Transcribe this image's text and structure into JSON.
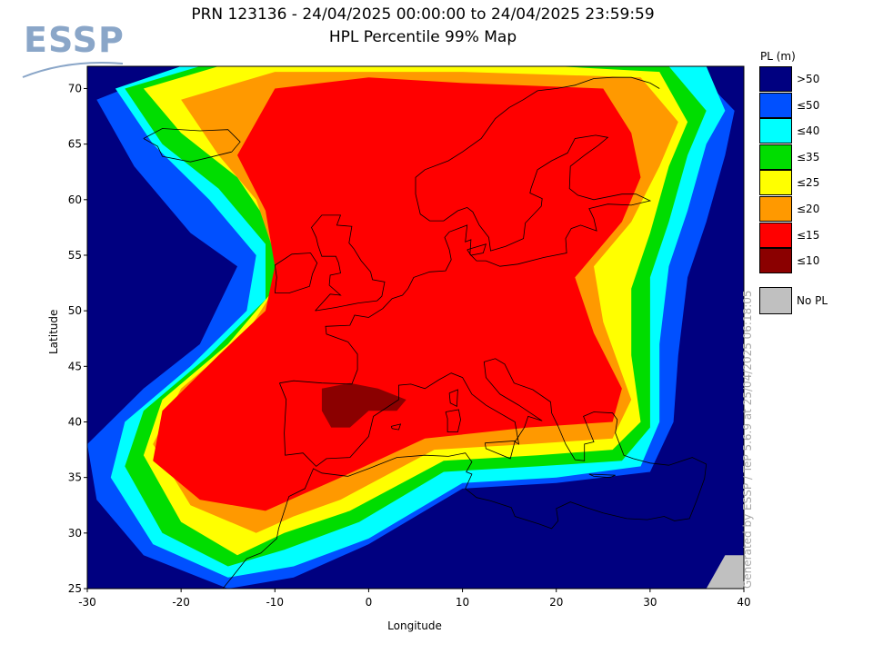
{
  "logo": {
    "text": "ESSP",
    "color": "#8aa6c8"
  },
  "title": {
    "line1": "PRN 123136 - 24/04/2025 00:00:00 to 24/04/2025 23:59:59",
    "line2": "HPL Percentile 99% Map"
  },
  "axes": {
    "xlabel": "Longitude",
    "ylabel": "Latitude",
    "xlim": [
      -30,
      40
    ],
    "ylim": [
      25,
      72
    ],
    "xticks": [
      -30,
      -20,
      -10,
      0,
      10,
      20,
      30,
      40
    ],
    "yticks": [
      25,
      30,
      35,
      40,
      45,
      50,
      55,
      60,
      65,
      70
    ]
  },
  "legend": {
    "title": "PL (m)",
    "items": [
      {
        "label": ">50",
        "color": "#000080"
      },
      {
        "label": "≤50",
        "color": "#0050ff"
      },
      {
        "label": "≤40",
        "color": "#00ffff"
      },
      {
        "label": "≤35",
        "color": "#00dd00"
      },
      {
        "label": "≤25",
        "color": "#ffff00"
      },
      {
        "label": "≤20",
        "color": "#ff9900"
      },
      {
        "label": "≤15",
        "color": "#ff0000"
      },
      {
        "label": "≤10",
        "color": "#8b0000"
      }
    ],
    "no_pl": {
      "label": "No PL",
      "color": "#c0c0c0"
    }
  },
  "watermark": "Generated by ESSP / TeP 5.6.9 at 25/04/2025 06:18:05",
  "map_regions": {
    "background_level": ">50",
    "bands": [
      {
        "level": "≤50",
        "color": "#0050ff",
        "points": [
          [
            -29,
            69
          ],
          [
            -25,
            63
          ],
          [
            -19,
            57
          ],
          [
            -14,
            54
          ],
          [
            -18,
            47
          ],
          [
            -24,
            43
          ],
          [
            -30,
            38
          ],
          [
            -29,
            33
          ],
          [
            -24,
            28
          ],
          [
            -15,
            25
          ],
          [
            -8,
            26
          ],
          [
            0,
            29
          ],
          [
            10,
            34
          ],
          [
            20,
            34.5
          ],
          [
            30,
            35.5
          ],
          [
            32.5,
            40
          ],
          [
            33,
            46
          ],
          [
            34,
            53
          ],
          [
            36,
            58
          ],
          [
            38,
            64
          ],
          [
            39,
            68
          ],
          [
            35,
            71.5
          ],
          [
            20,
            72
          ],
          [
            0,
            72
          ],
          [
            -20,
            72
          ]
        ]
      },
      {
        "level": "≤40",
        "color": "#00ffff",
        "points": [
          [
            -27,
            70
          ],
          [
            -23,
            65
          ],
          [
            -17,
            60
          ],
          [
            -12,
            55
          ],
          [
            -13,
            50
          ],
          [
            -19,
            45
          ],
          [
            -26,
            40
          ],
          [
            -27.5,
            35
          ],
          [
            -23,
            29
          ],
          [
            -15,
            26
          ],
          [
            -8,
            27
          ],
          [
            0,
            29.5
          ],
          [
            10,
            34.5
          ],
          [
            20,
            35
          ],
          [
            29,
            36
          ],
          [
            31,
            40
          ],
          [
            31,
            47
          ],
          [
            32,
            54
          ],
          [
            34,
            59
          ],
          [
            36,
            65
          ],
          [
            38,
            68
          ],
          [
            36,
            72
          ],
          [
            20,
            72
          ],
          [
            0,
            72
          ],
          [
            -20,
            72
          ]
        ]
      },
      {
        "level": "≤35",
        "color": "#00dd00",
        "points": [
          [
            -26,
            70
          ],
          [
            -22,
            65
          ],
          [
            -16,
            61
          ],
          [
            -11,
            56
          ],
          [
            -11,
            51
          ],
          [
            -17,
            46
          ],
          [
            -24,
            41
          ],
          [
            -26,
            36
          ],
          [
            -22,
            30
          ],
          [
            -15,
            27
          ],
          [
            -9,
            28.5
          ],
          [
            -1,
            31
          ],
          [
            8,
            35.5
          ],
          [
            18,
            36
          ],
          [
            27,
            36.5
          ],
          [
            30,
            39.5
          ],
          [
            30,
            46
          ],
          [
            30,
            53
          ],
          [
            32,
            58
          ],
          [
            34,
            64
          ],
          [
            36,
            68
          ],
          [
            32,
            72
          ],
          [
            20,
            72
          ],
          [
            0,
            72
          ],
          [
            -18,
            72
          ]
        ]
      },
      {
        "level": "≤25",
        "color": "#ffff00",
        "points": [
          [
            -24,
            70
          ],
          [
            -20,
            66
          ],
          [
            -14,
            62
          ],
          [
            -10,
            57
          ],
          [
            -10,
            52
          ],
          [
            -15,
            47
          ],
          [
            -22,
            42
          ],
          [
            -24,
            37
          ],
          [
            -20,
            31
          ],
          [
            -14,
            28
          ],
          [
            -9,
            30
          ],
          [
            -2,
            32
          ],
          [
            8,
            36.5
          ],
          [
            18,
            37
          ],
          [
            26,
            37.5
          ],
          [
            29,
            40
          ],
          [
            28,
            46
          ],
          [
            28,
            52
          ],
          [
            30,
            57
          ],
          [
            32,
            63
          ],
          [
            34,
            67
          ],
          [
            31,
            71.5
          ],
          [
            20,
            72
          ],
          [
            0,
            72
          ],
          [
            -16,
            72
          ]
        ]
      },
      {
        "level": "≤20",
        "color": "#ff9900",
        "points": [
          [
            -20,
            69
          ],
          [
            -16,
            64
          ],
          [
            -12,
            60
          ],
          [
            -10,
            55
          ],
          [
            -10,
            52
          ],
          [
            -13,
            48
          ],
          [
            -20,
            43
          ],
          [
            -23,
            38
          ],
          [
            -19,
            32.5
          ],
          [
            -12,
            30
          ],
          [
            -8,
            31.5
          ],
          [
            -3,
            33
          ],
          [
            7,
            37.5
          ],
          [
            17,
            38
          ],
          [
            26,
            38.5
          ],
          [
            28,
            42
          ],
          [
            25,
            49
          ],
          [
            24,
            54
          ],
          [
            28,
            58
          ],
          [
            31,
            63
          ],
          [
            33,
            67
          ],
          [
            29,
            71
          ],
          [
            10,
            71.5
          ],
          [
            -10,
            71.5
          ]
        ]
      },
      {
        "level": "≤15",
        "color": "#ff0000",
        "points": [
          [
            -10,
            70
          ],
          [
            -14,
            64
          ],
          [
            -11,
            59
          ],
          [
            -10,
            54
          ],
          [
            -11,
            50
          ],
          [
            -16,
            46
          ],
          [
            -22,
            41
          ],
          [
            -23,
            36.5
          ],
          [
            -18,
            33
          ],
          [
            -11,
            32
          ],
          [
            -7,
            33.5
          ],
          [
            -3,
            35
          ],
          [
            6,
            38.5
          ],
          [
            17,
            39.5
          ],
          [
            26,
            40
          ],
          [
            27,
            43
          ],
          [
            24,
            48
          ],
          [
            22,
            53
          ],
          [
            27,
            58
          ],
          [
            29,
            62
          ],
          [
            28,
            66
          ],
          [
            25,
            70
          ],
          [
            10,
            70.5
          ],
          [
            0,
            71
          ]
        ]
      },
      {
        "level": "≤10",
        "color": "#8b0000",
        "points": [
          [
            -5,
            43
          ],
          [
            -2,
            43.5
          ],
          [
            1,
            43
          ],
          [
            4,
            42
          ],
          [
            3,
            41
          ],
          [
            0,
            41
          ],
          [
            -2,
            39.5
          ],
          [
            -4,
            39.5
          ],
          [
            -5,
            41
          ]
        ]
      }
    ],
    "no_pl_patches": [
      {
        "points": [
          [
            36,
            25
          ],
          [
            38,
            28
          ],
          [
            40,
            28
          ],
          [
            40,
            25
          ]
        ]
      }
    ]
  }
}
